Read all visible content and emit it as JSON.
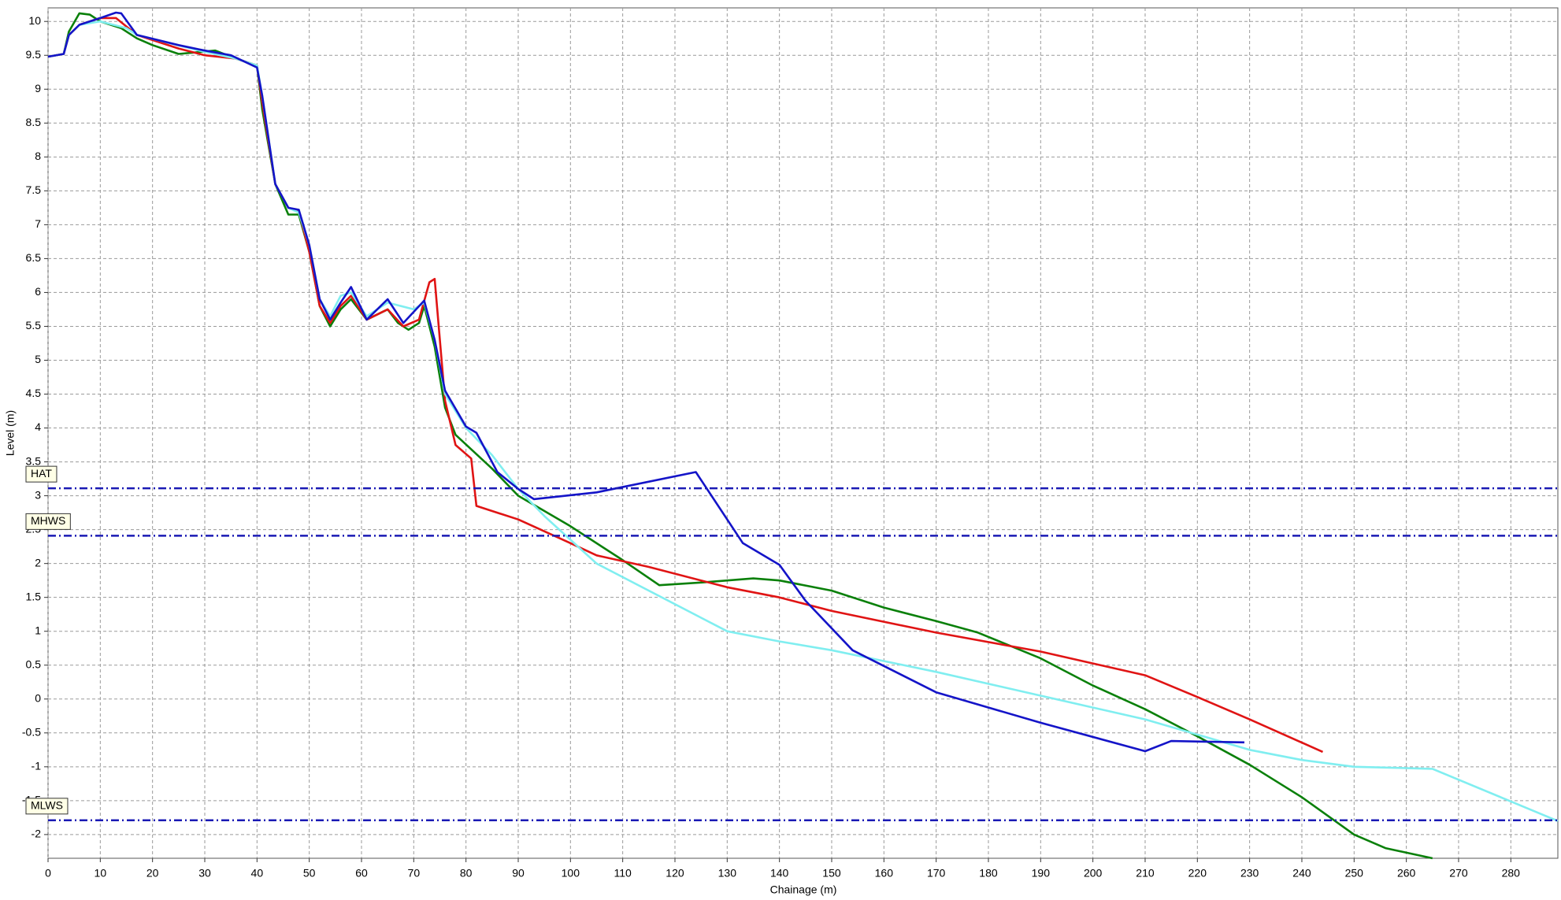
{
  "chart_data": {
    "type": "line",
    "x_label": "Chainage (m)",
    "y_label": "Level (m)",
    "xlim": [
      0,
      289
    ],
    "ylim": [
      -2.35,
      10.2
    ],
    "xticks": [
      0,
      10,
      20,
      30,
      40,
      50,
      60,
      70,
      80,
      90,
      100,
      110,
      120,
      130,
      140,
      150,
      160,
      170,
      180,
      190,
      200,
      210,
      220,
      230,
      240,
      250,
      260,
      270,
      280
    ],
    "yticks": [
      -2,
      -1.5,
      -1,
      -0.5,
      0,
      0.5,
      1,
      1.5,
      2,
      2.5,
      3,
      3.5,
      4,
      4.5,
      5,
      5.5,
      6,
      6.5,
      7,
      7.5,
      8,
      8.5,
      9,
      9.5,
      10
    ],
    "grid": true,
    "reference_lines": [
      {
        "label": "HAT",
        "value": 3.11,
        "color": "#1a1ab4"
      },
      {
        "label": "MHWS",
        "value": 2.41,
        "color": "#1a1ab4"
      },
      {
        "label": "MLWS",
        "value": -1.79,
        "color": "#1a1ab4"
      }
    ],
    "series": [
      {
        "color": "#0a800a",
        "x": [
          0,
          3,
          4,
          6,
          8,
          10,
          14,
          17,
          20,
          25,
          32,
          36,
          40,
          41,
          43.5,
          46,
          48,
          50,
          52,
          54,
          56,
          58,
          61,
          65,
          67,
          69,
          71,
          72,
          74,
          76,
          78,
          85,
          90,
          100,
          110,
          117,
          125,
          135,
          140,
          150,
          160,
          170,
          178,
          190,
          200,
          210,
          220,
          230,
          240,
          250,
          256,
          265
        ],
        "values": [
          9.48,
          9.52,
          9.85,
          10.12,
          10.1,
          10.0,
          9.9,
          9.75,
          9.65,
          9.52,
          9.57,
          9.45,
          9.35,
          8.7,
          7.6,
          7.15,
          7.15,
          6.6,
          5.8,
          5.5,
          5.75,
          5.9,
          5.6,
          5.75,
          5.55,
          5.45,
          5.55,
          5.8,
          5.2,
          4.3,
          3.9,
          3.4,
          3.0,
          2.55,
          2.05,
          1.68,
          1.72,
          1.78,
          1.75,
          1.6,
          1.35,
          1.15,
          0.98,
          0.6,
          0.2,
          -0.15,
          -0.55,
          -0.97,
          -1.45,
          -2.0,
          -2.2,
          -2.35
        ]
      },
      {
        "color": "#e01414",
        "x": [
          0,
          3,
          4,
          6,
          10,
          13,
          17,
          25,
          30,
          36,
          40,
          41,
          43.5,
          46,
          48,
          50,
          52,
          54,
          56,
          58,
          61,
          65,
          68,
          71,
          73,
          74,
          76,
          78,
          81,
          82,
          90,
          100,
          105,
          115,
          130,
          140,
          150,
          170,
          190,
          210,
          220,
          230,
          244
        ],
        "values": [
          9.48,
          9.52,
          9.8,
          9.95,
          10.05,
          10.05,
          9.8,
          9.6,
          9.5,
          9.45,
          9.35,
          8.8,
          7.6,
          7.25,
          7.2,
          6.6,
          5.8,
          5.55,
          5.8,
          5.95,
          5.6,
          5.75,
          5.5,
          5.6,
          6.15,
          6.2,
          4.4,
          3.75,
          3.55,
          2.85,
          2.65,
          2.3,
          2.12,
          1.95,
          1.65,
          1.5,
          1.3,
          0.98,
          0.7,
          0.35,
          0.03,
          -0.3,
          -0.78
        ]
      },
      {
        "color": "#80eef0",
        "x": [
          0,
          3,
          4,
          6,
          10,
          15,
          17,
          30,
          36,
          40,
          41,
          43.5,
          46,
          48,
          50,
          52,
          54,
          56,
          58,
          61,
          65,
          70,
          72,
          74,
          76,
          80,
          85,
          90,
          95,
          100,
          105,
          115,
          130,
          140,
          150,
          170,
          190,
          210,
          230,
          240,
          250,
          265,
          289
        ],
        "values": [
          9.48,
          9.52,
          9.8,
          9.95,
          10.0,
          9.9,
          9.8,
          9.55,
          9.45,
          9.35,
          8.9,
          7.6,
          7.25,
          7.18,
          6.7,
          5.9,
          5.65,
          5.95,
          6.0,
          5.65,
          5.85,
          5.75,
          5.85,
          5.3,
          4.5,
          4.0,
          3.6,
          3.1,
          2.7,
          2.35,
          2.0,
          1.6,
          1.0,
          0.85,
          0.72,
          0.4,
          0.05,
          -0.3,
          -0.75,
          -0.9,
          -1.0,
          -1.03,
          -1.8
        ]
      },
      {
        "color": "#1414c8",
        "x": [
          0,
          3,
          4,
          6,
          10,
          13,
          14,
          17,
          25,
          30,
          35,
          40,
          41,
          43.5,
          46,
          48,
          50,
          52,
          54,
          56,
          58,
          61,
          65,
          68,
          72,
          74,
          76,
          80,
          82,
          86,
          90,
          93,
          105,
          124,
          133,
          140,
          145,
          154,
          170,
          190,
          210,
          215,
          229
        ],
        "values": [
          9.48,
          9.52,
          9.8,
          9.95,
          10.05,
          10.13,
          10.12,
          9.8,
          9.65,
          9.57,
          9.5,
          9.32,
          8.9,
          7.6,
          7.25,
          7.22,
          6.7,
          5.9,
          5.6,
          5.85,
          6.08,
          5.6,
          5.9,
          5.55,
          5.88,
          5.3,
          4.55,
          4.02,
          3.93,
          3.35,
          3.1,
          2.95,
          3.05,
          3.35,
          2.3,
          1.98,
          1.45,
          0.72,
          0.1,
          -0.35,
          -0.77,
          -0.62,
          -0.64
        ]
      }
    ]
  }
}
